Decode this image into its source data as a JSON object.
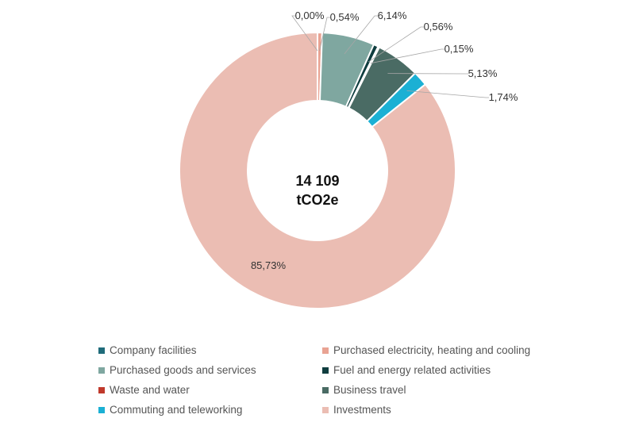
{
  "chart_data": {
    "type": "pie",
    "variant": "donut",
    "center_label": [
      "14 109",
      "tCO2e"
    ],
    "slices": [
      {
        "label": "Company facilities",
        "value": 0.0,
        "display": "0,00%",
        "color": "#1f6b7a"
      },
      {
        "label": "Purchased electricity, heating and cooling",
        "value": 0.54,
        "display": "0,54%",
        "color": "#e9a393"
      },
      {
        "label": "Purchased goods and services",
        "value": 6.14,
        "display": "6,14%",
        "color": "#7fa7a0"
      },
      {
        "label": "Fuel and energy related activities",
        "value": 0.56,
        "display": "0,56%",
        "color": "#0f3d3f"
      },
      {
        "label": "Waste and water",
        "value": 0.15,
        "display": "0,15%",
        "color": "#c0392b"
      },
      {
        "label": "Business travel",
        "value": 5.13,
        "display": "5,13%",
        "color": "#4a6b64"
      },
      {
        "label": "Commuting and teleworking",
        "value": 1.74,
        "display": "1,74%",
        "color": "#1bb0d4"
      },
      {
        "label": "Investments",
        "value": 85.73,
        "display": "85,73%",
        "color": "#ebbdb3"
      }
    ],
    "legend": [
      "Company facilities",
      "Purchased electricity, heating and cooling",
      "Purchased goods and services",
      "Fuel and energy related activities",
      "Waste and water",
      "Business travel",
      "Commuting and teleworking",
      "Investments"
    ],
    "legend_position": "bottom"
  }
}
